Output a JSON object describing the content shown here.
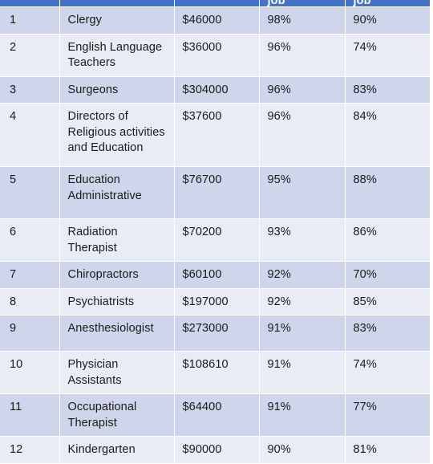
{
  "table": {
    "headers": [
      "",
      "",
      "",
      "job",
      "job"
    ],
    "rows": [
      {
        "rank": "1",
        "occupation": "Clergy",
        "salary": "$46000",
        "col4": "98%",
        "col5": "90%"
      },
      {
        "rank": "2",
        "occupation": "English Language Teachers",
        "salary": "$36000",
        "col4": "96%",
        "col5": "74%"
      },
      {
        "rank": "3",
        "occupation": "Surgeons",
        "salary": "$304000",
        "col4": "96%",
        "col5": "83%"
      },
      {
        "rank": "4",
        "occupation": "Directors of Religious activities and Education",
        "salary": "$37600",
        "col4": "96%",
        "col5": "84%"
      },
      {
        "rank": "5",
        "occupation": "Education Administrative",
        "salary": "$76700",
        "col4": "95%",
        "col5": "88%"
      },
      {
        "rank": "6",
        "occupation": "Radiation Therapist",
        "salary": "$70200",
        "col4": "93%",
        "col5": "86%"
      },
      {
        "rank": "7",
        "occupation": "Chiropractors",
        "salary": "$60100",
        "col4": "92%",
        "col5": "70%"
      },
      {
        "rank": "8",
        "occupation": "Psychiatrists",
        "salary": "$197000",
        "col4": "92%",
        "col5": "85%"
      },
      {
        "rank": "9",
        "occupation": "Anesthesiologist",
        "salary": "$273000",
        "col4": "91%",
        "col5": "83%"
      },
      {
        "rank": "10",
        "occupation": "Physician Assistants",
        "salary": "$108610",
        "col4": "91%",
        "col5": "74%"
      },
      {
        "rank": "11",
        "occupation": "Occupational Therapist",
        "salary": "$64400",
        "col4": "91%",
        "col5": "77%"
      },
      {
        "rank": "12",
        "occupation": "Kindergarten",
        "salary": "$90000",
        "col4": "90%",
        "col5": "81%"
      }
    ]
  },
  "colors": {
    "header": "#4472c4",
    "band_dark": "#cfd5ea",
    "band_light": "#e9ebf5"
  }
}
